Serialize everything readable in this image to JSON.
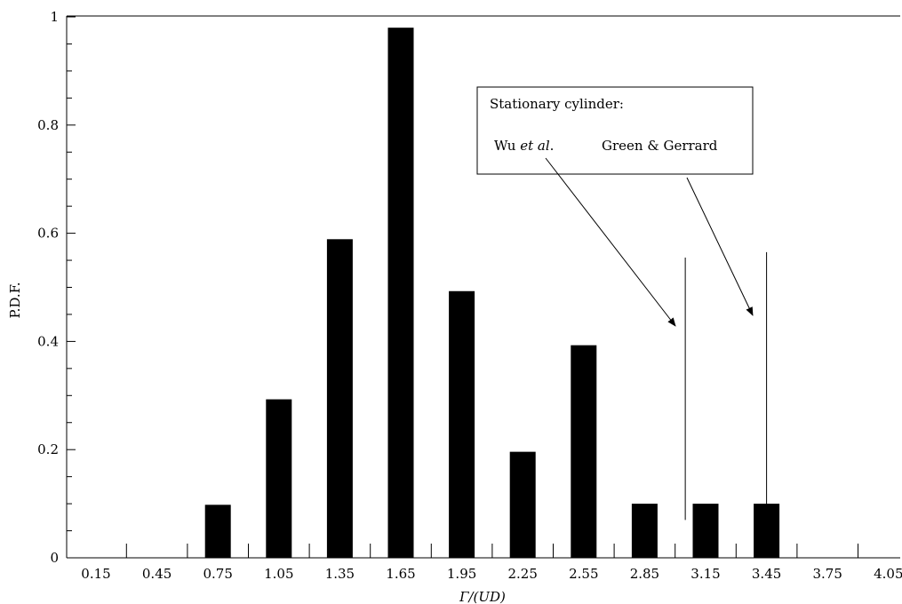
{
  "chart_data": {
    "type": "bar",
    "categories": [
      "0.15",
      "0.45",
      "0.75",
      "1.05",
      "1.35",
      "1.65",
      "1.95",
      "2.25",
      "2.55",
      "2.85",
      "3.15",
      "3.45",
      "3.75",
      "4.05"
    ],
    "values": [
      0,
      0,
      0.098,
      0.293,
      0.589,
      0.98,
      0.493,
      0.196,
      0.393,
      0.1,
      0.1,
      0.1,
      0,
      0
    ],
    "xlabel": "Γ/(UD)",
    "ylabel": "P.D.F.",
    "ylim": [
      0,
      1
    ],
    "yticks": [
      "0",
      "0.2",
      "0.4",
      "0.6",
      "0.8",
      "1"
    ],
    "bar_color": "#000000",
    "grid": false,
    "reference_lines": [
      {
        "label": "Wu et al.",
        "x": 3.05,
        "y_range": [
          0.07,
          0.555
        ]
      },
      {
        "label": "Green & Gerrard",
        "x": 3.45,
        "y_range": [
          0,
          0.565
        ]
      }
    ],
    "annotation": {
      "title": "Stationary cylinder:",
      "labels": [
        {
          "prefix": "Wu ",
          "italic": "et al",
          "suffix": "."
        },
        {
          "prefix": "Green & Gerrard",
          "italic": "",
          "suffix": ""
        }
      ]
    }
  }
}
